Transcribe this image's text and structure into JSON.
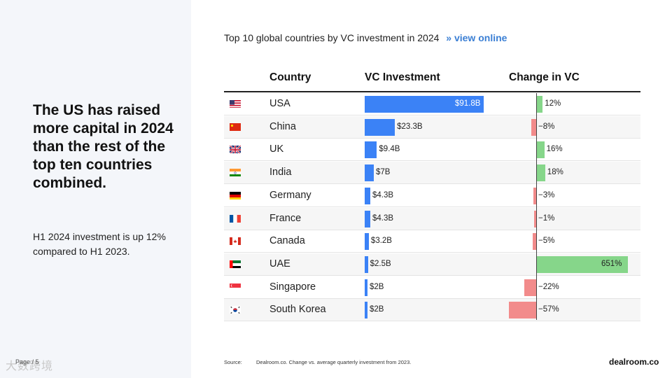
{
  "left": {
    "headline": "The US has raised more capital in 2024 than the rest of the top ten countries combined.",
    "subtext": "H1 2024 investment is up 12% compared to H1 2023.",
    "page": "Page / 5",
    "watermark": "大数跨境"
  },
  "chart_title": "Top 10 global countries by VC investment in 2024",
  "chart_link": "» view online",
  "columns": {
    "country": "Country",
    "investment": "VC Investment",
    "change": "Change in VC"
  },
  "footer": {
    "source_label": "Source:",
    "source_text": "Dealroom.co. Change vs. average quarterly investment from 2023.",
    "brand": "dealroom.co"
  },
  "colors": {
    "investment_bar": "#3b82f6",
    "positive": "#86d68a",
    "negative": "#f28b8b"
  },
  "chart_data": {
    "type": "table",
    "title": "Top 10 global countries by VC investment in 2024",
    "rows": [
      {
        "flag": "us-flag-icon",
        "country": "USA",
        "investment": 91.8,
        "investment_label": "$91.8B",
        "change": 12,
        "change_label": "12%"
      },
      {
        "flag": "cn-flag-icon",
        "country": "China",
        "investment": 23.3,
        "investment_label": "$23.3B",
        "change": -8,
        "change_label": "−8%"
      },
      {
        "flag": "uk-flag-icon",
        "country": "UK",
        "investment": 9.4,
        "investment_label": "$9.4B",
        "change": 16,
        "change_label": "16%"
      },
      {
        "flag": "in-flag-icon",
        "country": "India",
        "investment": 7,
        "investment_label": "$7B",
        "change": 18,
        "change_label": "18%"
      },
      {
        "flag": "de-flag-icon",
        "country": "Germany",
        "investment": 4.3,
        "investment_label": "$4.3B",
        "change": -3,
        "change_label": "−3%"
      },
      {
        "flag": "fr-flag-icon",
        "country": "France",
        "investment": 4.3,
        "investment_label": "$4.3B",
        "change": -1,
        "change_label": "−1%"
      },
      {
        "flag": "ca-flag-icon",
        "country": "Canada",
        "investment": 3.2,
        "investment_label": "$3.2B",
        "change": -5,
        "change_label": "−5%"
      },
      {
        "flag": "ae-flag-icon",
        "country": "UAE",
        "investment": 2.5,
        "investment_label": "$2.5B",
        "change": 651,
        "change_label": "651%"
      },
      {
        "flag": "sg-flag-icon",
        "country": "Singapore",
        "investment": 2,
        "investment_label": "$2B",
        "change": -22,
        "change_label": "−22%"
      },
      {
        "flag": "kr-flag-icon",
        "country": "South Korea",
        "investment": 2,
        "investment_label": "$2B",
        "change": -57,
        "change_label": "−57%"
      }
    ]
  }
}
